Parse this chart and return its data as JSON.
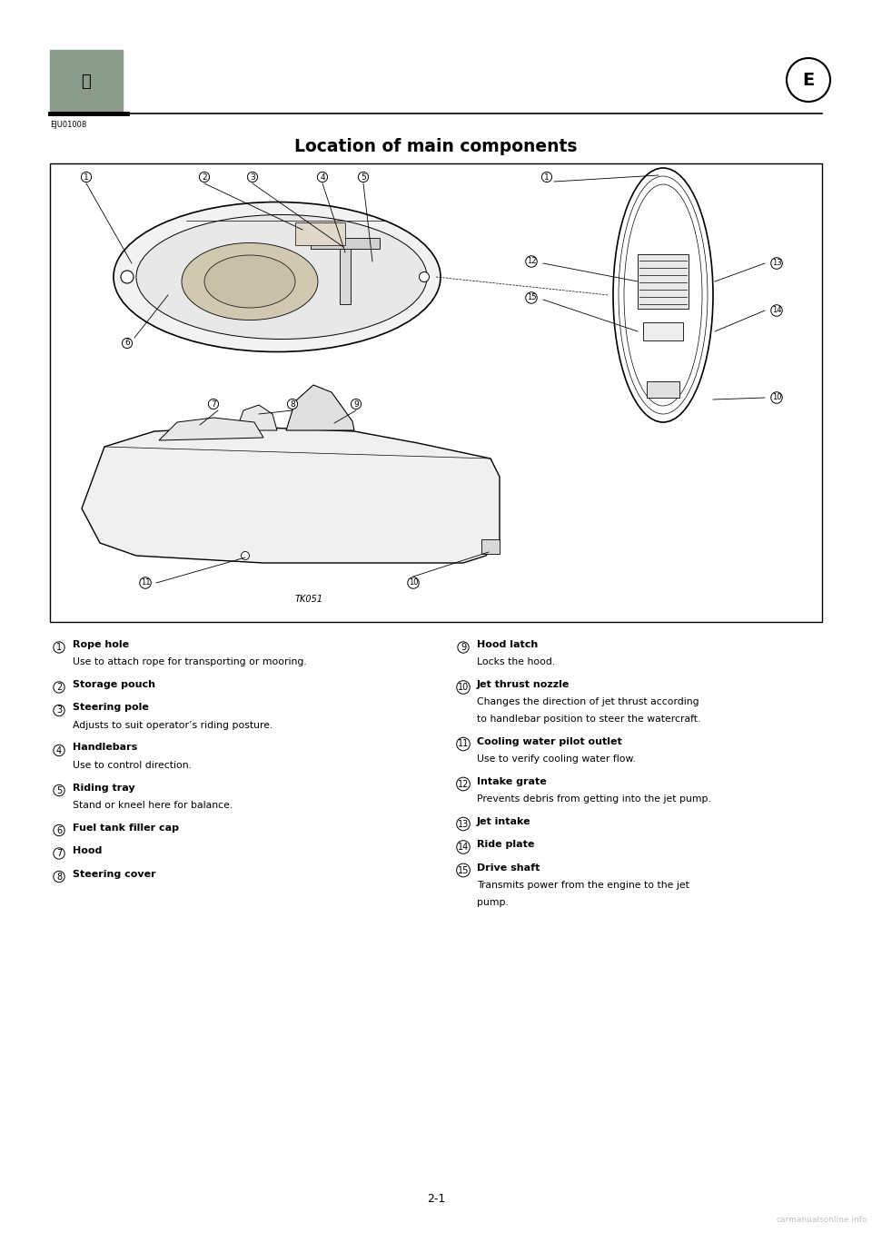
{
  "bg_color": "#ffffff",
  "page_number": "2-1",
  "section_code": "EJU01008",
  "section_letter": "E",
  "title": "Location of main components",
  "components_left": [
    {
      "num": "1",
      "bold": "Rope hole",
      "desc": "Use to attach rope for transporting or mooring."
    },
    {
      "num": "2",
      "bold": "Storage pouch",
      "desc": ""
    },
    {
      "num": "3",
      "bold": "Steering pole",
      "desc": "Adjusts to suit operator’s riding posture."
    },
    {
      "num": "4",
      "bold": "Handlebars",
      "desc": "Use to control direction."
    },
    {
      "num": "5",
      "bold": "Riding tray",
      "desc": "Stand or kneel here for balance."
    },
    {
      "num": "6",
      "bold": "Fuel tank filler cap",
      "desc": ""
    },
    {
      "num": "7",
      "bold": "Hood",
      "desc": ""
    },
    {
      "num": "8",
      "bold": "Steering cover",
      "desc": ""
    }
  ],
  "components_right": [
    {
      "num": "9",
      "bold": "Hood latch",
      "desc": "Locks the hood."
    },
    {
      "num": "10",
      "bold": "Jet thrust nozzle",
      "desc": "Changes the direction of jet thrust according\nto handlebar position to steer the watercraft."
    },
    {
      "num": "11",
      "bold": "Cooling water pilot outlet",
      "desc": "Use to verify cooling water flow."
    },
    {
      "num": "12",
      "bold": "Intake grate",
      "desc": "Prevents debris from getting into the jet pump."
    },
    {
      "num": "13",
      "bold": "Jet intake",
      "desc": ""
    },
    {
      "num": "14",
      "bold": "Ride plate",
      "desc": ""
    },
    {
      "num": "15",
      "bold": "Drive shaft",
      "desc": "Transmits power from the engine to the jet\npump."
    }
  ],
  "tk_label": "TK051"
}
